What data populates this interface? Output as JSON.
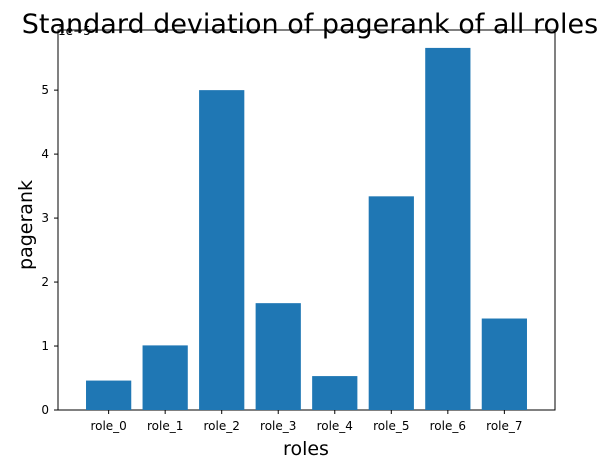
{
  "chart_data": {
    "type": "bar",
    "title": "Standard deviation of pagerank of all roles",
    "xlabel": "roles",
    "ylabel": "pagerank",
    "offset_text": "1e−5",
    "categories": [
      "role_0",
      "role_1",
      "role_2",
      "role_3",
      "role_4",
      "role_5",
      "role_6",
      "role_7"
    ],
    "values": [
      0.46,
      1.01,
      5.0,
      1.67,
      0.53,
      3.34,
      5.66,
      1.43
    ],
    "yticks": [
      0,
      1,
      2,
      3,
      4,
      5
    ],
    "ylim": [
      0,
      5.94
    ],
    "grid": false,
    "color": "#1f77b4"
  }
}
